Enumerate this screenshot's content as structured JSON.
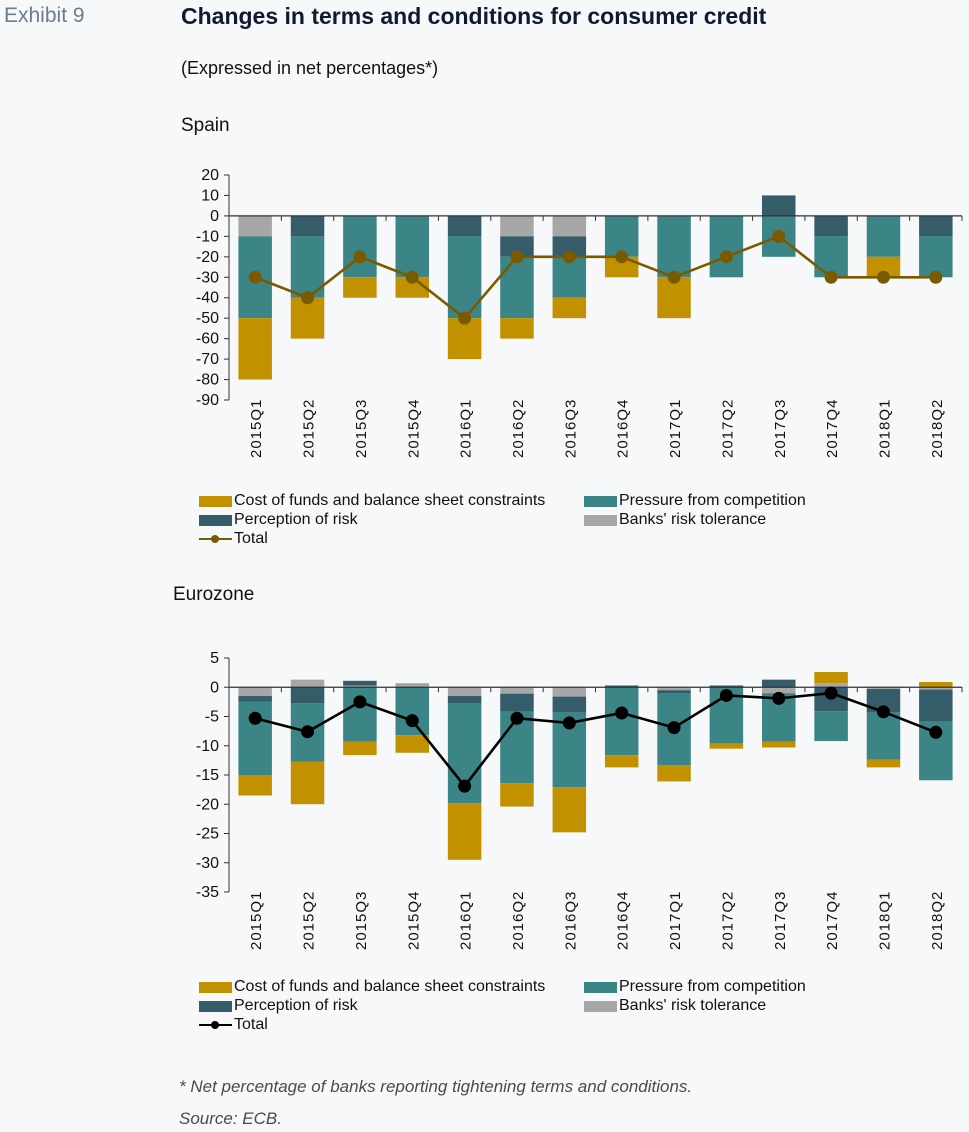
{
  "header": {
    "exhibit": "Exhibit 9",
    "title": "Changes in terms and conditions for consumer credit",
    "subtitle": "(Expressed in net percentages*)"
  },
  "colors": {
    "cost": "#c29100",
    "competition": "#3b8586",
    "risk": "#355c69",
    "tolerance": "#a7a7a7",
    "total_spain": "#7a5a00",
    "total_euro": "#000000"
  },
  "legend": {
    "cost": "Cost of funds and balance sheet constraints",
    "competition": "Pressure from competition",
    "risk": "Perception of risk",
    "tolerance": "Banks' risk tolerance",
    "total": "Total"
  },
  "footnote": "* Net percentage of banks reporting tightening terms and conditions.",
  "source": "Source: ECB.",
  "chart_data": [
    {
      "type": "bar",
      "stacked": true,
      "title": "Spain",
      "categories": [
        "2015Q1",
        "2015Q2",
        "2015Q3",
        "2015Q4",
        "2016Q1",
        "2016Q2",
        "2016Q3",
        "2016Q4",
        "2017Q1",
        "2017Q2",
        "2017Q3",
        "2017Q4",
        "2018Q1",
        "2018Q2"
      ],
      "ylim": [
        -90,
        20
      ],
      "yticks": [
        20,
        10,
        0,
        -10,
        -20,
        -30,
        -40,
        -50,
        -60,
        -70,
        -80,
        -90
      ],
      "series": [
        {
          "name": "Banks' risk tolerance",
          "key": "tolerance",
          "values": [
            -10,
            0,
            0,
            0,
            0,
            -10,
            -10,
            0,
            0,
            0,
            0,
            0,
            0,
            0
          ]
        },
        {
          "name": "Perception of risk",
          "key": "risk",
          "values": [
            0,
            -10,
            0,
            0,
            -10,
            -10,
            -10,
            0,
            0,
            0,
            10,
            -10,
            0,
            -10
          ]
        },
        {
          "name": "Pressure from competition",
          "key": "competition",
          "values": [
            -40,
            -30,
            -30,
            -30,
            -40,
            -30,
            -20,
            -20,
            -30,
            -30,
            -20,
            -20,
            -20,
            -20
          ]
        },
        {
          "name": "Cost of funds and balance sheet constraints",
          "key": "cost",
          "values": [
            -30,
            -20,
            -10,
            -10,
            -20,
            -10,
            -10,
            -10,
            -20,
            0,
            0,
            0,
            -10,
            0
          ]
        },
        {
          "name": "Total",
          "key": "total",
          "type": "line",
          "values": [
            -30,
            -40,
            -20,
            -30,
            -50,
            -20,
            -20,
            -20,
            -30,
            -20,
            -10,
            -30,
            -30,
            -30
          ]
        }
      ],
      "legend_position": "bottom"
    },
    {
      "type": "bar",
      "stacked": true,
      "title": "Eurozone",
      "categories": [
        "2015Q1",
        "2015Q2",
        "2015Q3",
        "2015Q4",
        "2016Q1",
        "2016Q2",
        "2016Q3",
        "2016Q4",
        "2017Q1",
        "2017Q2",
        "2017Q3",
        "2017Q4",
        "2018Q1",
        "2018Q2"
      ],
      "ylim": [
        -35,
        5
      ],
      "yticks": [
        5,
        0,
        -5,
        -10,
        -15,
        -20,
        -25,
        -30,
        -35
      ],
      "series": [
        {
          "name": "Banks' risk tolerance",
          "key": "tolerance",
          "values": [
            -1.5,
            1.3,
            0.3,
            0.7,
            -1.5,
            -1.1,
            -1.6,
            0,
            -0.5,
            0,
            -1.0,
            0.7,
            -0.3,
            -0.4
          ]
        },
        {
          "name": "Perception of risk",
          "key": "risk",
          "values": [
            -1.0,
            -2.7,
            0.8,
            0,
            -1.3,
            -3.1,
            -2.7,
            0.3,
            -0.6,
            0.3,
            1.3,
            -4.1,
            -4.0,
            -5.5
          ]
        },
        {
          "name": "Pressure from competition",
          "key": "competition",
          "values": [
            -12.5,
            -10.0,
            -9.3,
            -8.2,
            -17.0,
            -12.2,
            -12.8,
            -11.6,
            -12.2,
            -9.6,
            -8.3,
            -5.1,
            -8.1,
            -10.0
          ]
        },
        {
          "name": "Cost of funds and balance sheet constraints",
          "key": "cost",
          "values": [
            -3.5,
            -7.3,
            -2.3,
            -3.0,
            -9.7,
            -4.0,
            -7.7,
            -2.1,
            -2.8,
            -0.9,
            -1.0,
            1.9,
            -1.3,
            0.9
          ]
        },
        {
          "name": "Total",
          "key": "total",
          "type": "line",
          "values": [
            -5.3,
            -7.6,
            -2.5,
            -5.7,
            -16.9,
            -5.3,
            -6.1,
            -4.4,
            -6.9,
            -1.4,
            -1.9,
            -1.0,
            -4.2,
            -7.7
          ]
        }
      ],
      "legend_position": "bottom"
    }
  ]
}
